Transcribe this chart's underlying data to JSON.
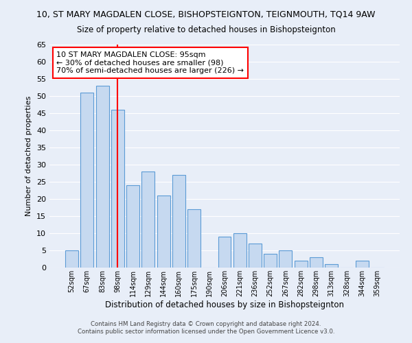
{
  "title": "10, ST MARY MAGDALEN CLOSE, BISHOPSTEIGNTON, TEIGNMOUTH, TQ14 9AW",
  "subtitle": "Size of property relative to detached houses in Bishopsteignton",
  "xlabel": "Distribution of detached houses by size in Bishopsteignton",
  "ylabel": "Number of detached properties",
  "bar_labels": [
    "52sqm",
    "67sqm",
    "83sqm",
    "98sqm",
    "114sqm",
    "129sqm",
    "144sqm",
    "160sqm",
    "175sqm",
    "190sqm",
    "206sqm",
    "221sqm",
    "236sqm",
    "252sqm",
    "267sqm",
    "282sqm",
    "298sqm",
    "313sqm",
    "328sqm",
    "344sqm",
    "359sqm"
  ],
  "bar_values": [
    5,
    51,
    53,
    46,
    24,
    28,
    21,
    27,
    17,
    0,
    9,
    10,
    7,
    4,
    5,
    2,
    3,
    1,
    0,
    2,
    0
  ],
  "bar_color": "#c6d9f0",
  "bar_edge_color": "#5b9bd5",
  "annotation_line_x_label": "98sqm",
  "annotation_line_color": "red",
  "annotation_box_text": "10 ST MARY MAGDALEN CLOSE: 95sqm\n← 30% of detached houses are smaller (98)\n70% of semi-detached houses are larger (226) →",
  "ylim": [
    0,
    65
  ],
  "yticks": [
    0,
    5,
    10,
    15,
    20,
    25,
    30,
    35,
    40,
    45,
    50,
    55,
    60,
    65
  ],
  "footer1": "Contains HM Land Registry data © Crown copyright and database right 2024.",
  "footer2": "Contains public sector information licensed under the Open Government Licence v3.0.",
  "background_color": "#e8eef8",
  "grid_color": "#ffffff"
}
